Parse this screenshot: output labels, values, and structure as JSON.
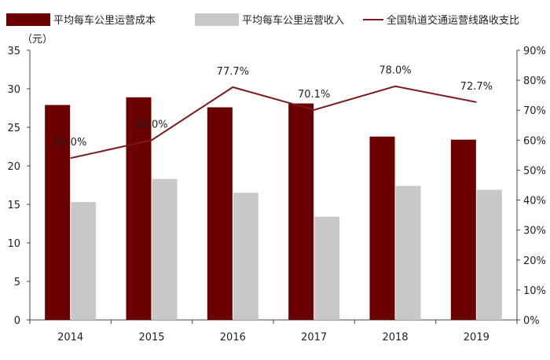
{
  "chart_data": {
    "type": "bar",
    "unit_label": "（元）",
    "categories": [
      "2014",
      "2015",
      "2016",
      "2017",
      "2018",
      "2019"
    ],
    "series": [
      {
        "name": "平均每车公里运营成本",
        "type": "bar",
        "axis": "left",
        "color": "#6b0000",
        "values": [
          27.9,
          28.9,
          27.6,
          28.1,
          23.8,
          23.4
        ]
      },
      {
        "name": "平均每车公里运营收入",
        "type": "bar",
        "axis": "left",
        "color": "#c8c8c8",
        "values": [
          15.3,
          18.3,
          16.5,
          13.4,
          17.4,
          16.9
        ]
      },
      {
        "name": "全国轨道交通运营线路收支比",
        "type": "line",
        "axis": "right",
        "color": "#7a1a1a",
        "values": [
          54.0,
          60.0,
          77.7,
          70.1,
          78.0,
          72.7
        ],
        "labels": [
          "54.0%",
          "60.0%",
          "77.7%",
          "70.1%",
          "78.0%",
          "72.7%"
        ]
      }
    ],
    "y_left": {
      "min": 0,
      "max": 35,
      "ticks": [
        "0",
        "5",
        "10",
        "15",
        "20",
        "25",
        "30",
        "35"
      ]
    },
    "y_right": {
      "min": 0,
      "max": 90,
      "ticks": [
        "0%",
        "10%",
        "20%",
        "30%",
        "40%",
        "50%",
        "60%",
        "70%",
        "80%",
        "90%"
      ]
    },
    "grid": false,
    "legend_position": "top"
  }
}
